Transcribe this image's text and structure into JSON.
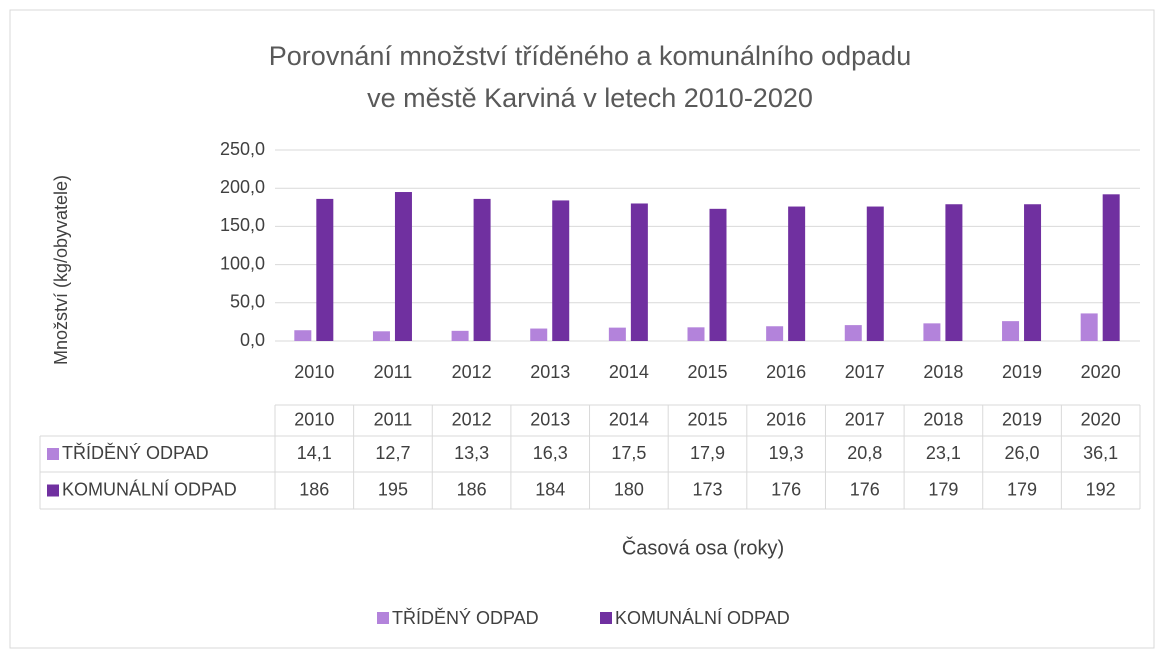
{
  "chart_data": {
    "type": "bar",
    "title": [
      "Porovnání množství tříděného a komunálního odpadu",
      "ve městě Karviná v letech 2010-2020"
    ],
    "y_label": "Množství (kg/obyvatele)",
    "x_label": "Časová osa (roky)",
    "categories": [
      "2010",
      "2011",
      "2012",
      "2013",
      "2014",
      "2015",
      "2016",
      "2017",
      "2018",
      "2019",
      "2020"
    ],
    "series": [
      {
        "name": "TŘÍDĚNÝ ODPAD",
        "color": "#b383db",
        "values": [
          14.1,
          12.7,
          13.3,
          16.3,
          17.5,
          17.9,
          19.3,
          20.8,
          23.1,
          26.0,
          36.1
        ],
        "value_labels": [
          "14,1",
          "12,7",
          "13,3",
          "16,3",
          "17,5",
          "17,9",
          "19,3",
          "20,8",
          "23,1",
          "26,0",
          "36,1"
        ]
      },
      {
        "name": "KOMUNÁLNÍ ODPAD",
        "color": "#7030a0",
        "values": [
          186,
          195,
          186,
          184,
          180,
          173,
          176,
          176,
          179,
          179,
          192
        ]
      }
    ],
    "ylim": [
      0,
      250
    ],
    "yticks": [
      {
        "value": 0,
        "label": "0,0"
      },
      {
        "value": 50,
        "label": "50,0"
      },
      {
        "value": 100,
        "label": "100,0"
      },
      {
        "value": 150,
        "label": "150,0"
      },
      {
        "value": 200,
        "label": "200,0"
      },
      {
        "value": 250,
        "label": "250,0"
      }
    ],
    "grid": true,
    "legend": "bottom"
  }
}
